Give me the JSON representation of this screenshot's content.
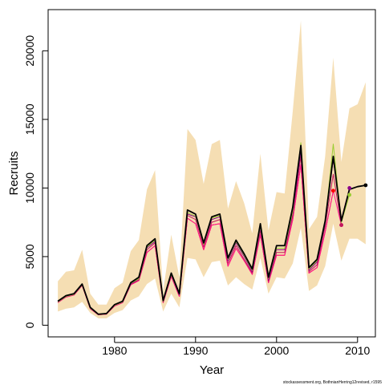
{
  "chart_data": {
    "type": "line",
    "xlabel": "Year",
    "ylabel": "Recruits",
    "footnote": "stockassessment.org, BothnianHerring12revised, r1595",
    "xlim": [
      1971.8,
      2012.2
    ],
    "ylim": [
      -850,
      23000
    ],
    "x_ticks": [
      1980,
      1990,
      2000,
      2010
    ],
    "x_tick_labels": [
      "1980",
      "1990",
      "2000",
      "2010"
    ],
    "y_ticks": [
      0,
      5000,
      10000,
      15000,
      20000
    ],
    "y_tick_labels": [
      "0",
      "5000",
      "10000",
      "15000",
      "20000"
    ],
    "years": [
      1973,
      1974,
      1975,
      1976,
      1977,
      1978,
      1979,
      1980,
      1981,
      1982,
      1983,
      1984,
      1985,
      1986,
      1987,
      1988,
      1989,
      1990,
      1991,
      1992,
      1993,
      1994,
      1995,
      1996,
      1997,
      1998,
      1999,
      2000,
      2001,
      2002,
      2003,
      2004,
      2005,
      2006,
      2007,
      2008,
      2009,
      2010,
      2011
    ],
    "band_color": "#f5deb3",
    "band_lower": [
      1000,
      1200,
      1300,
      1700,
      900,
      500,
      500,
      900,
      1100,
      1800,
      2100,
      3000,
      3400,
      1000,
      2300,
      1300,
      4900,
      4800,
      3500,
      4600,
      4700,
      2900,
      3500,
      3000,
      2600,
      4900,
      2300,
      3500,
      3400,
      4500,
      7100,
      2500,
      2900,
      4300,
      7400,
      4700,
      6300,
      6300,
      5900
    ],
    "band_upper": [
      3200,
      3900,
      4000,
      5500,
      2300,
      1500,
      1500,
      2700,
      3100,
      5400,
      6200,
      9900,
      11300,
      2500,
      6600,
      3500,
      14300,
      13500,
      10300,
      13200,
      13500,
      8500,
      10500,
      8900,
      6700,
      12500,
      6900,
      9700,
      9600,
      15600,
      22200,
      7000,
      7900,
      12300,
      19500,
      11900,
      15800,
      16100,
      17700
    ],
    "series": [
      {
        "color": "#000000",
        "values": [
          1750,
          2150,
          2300,
          3000,
          1300,
          800,
          850,
          1500,
          1750,
          3100,
          3500,
          5800,
          6300,
          1800,
          3800,
          2300,
          8400,
          8100,
          6000,
          7900,
          8100,
          4900,
          6200,
          5200,
          4100,
          7400,
          3500,
          5800,
          5800,
          8600,
          13100,
          4200,
          4800,
          7600,
          12300,
          7600,
          9900,
          10100,
          10200
        ]
      },
      {
        "color": "#9acd32",
        "values": [
          1700,
          2100,
          2250,
          2950,
          1250,
          780,
          830,
          1450,
          1700,
          3050,
          3400,
          5700,
          6200,
          1750,
          3700,
          2250,
          8200,
          7950,
          5900,
          7800,
          8000,
          4800,
          6100,
          5100,
          4000,
          7200,
          3400,
          5600,
          5600,
          8300,
          13300,
          4100,
          4700,
          7500,
          13200,
          7500,
          9500
        ]
      },
      {
        "color": "#8b008b",
        "values": [
          1700,
          2100,
          2250,
          2950,
          1250,
          780,
          830,
          1450,
          1700,
          3000,
          3400,
          5650,
          6100,
          1750,
          3700,
          2200,
          8100,
          7900,
          5900,
          7700,
          7900,
          4700,
          6000,
          5000,
          3900,
          7100,
          3300,
          5500,
          5500,
          8200,
          12700,
          4000,
          4600,
          7400,
          12100,
          7700,
          10000
        ]
      },
      {
        "color": "#c2185b",
        "values": [
          1700,
          2100,
          2250,
          2950,
          1250,
          780,
          830,
          1450,
          1700,
          3000,
          3300,
          5500,
          6000,
          1700,
          3650,
          2200,
          8000,
          7700,
          5700,
          7500,
          7700,
          4500,
          5800,
          4800,
          3800,
          6900,
          3200,
          5300,
          5300,
          8000,
          12300,
          3900,
          4400,
          7200,
          11000,
          7300
        ]
      },
      {
        "color": "#ff1493",
        "values": [
          1650,
          2050,
          2200,
          2900,
          1200,
          760,
          810,
          1400,
          1650,
          2950,
          3250,
          5300,
          5800,
          1650,
          3550,
          2100,
          7800,
          7400,
          5500,
          7300,
          7400,
          4300,
          5600,
          4700,
          3700,
          6600,
          3100,
          5100,
          5100,
          7700,
          11700,
          3800,
          4200,
          6800,
          9800,
          7300
        ]
      },
      {
        "color": "#ff0000",
        "values": [
          1650,
          2050,
          2200,
          2900,
          1200,
          760,
          810,
          1400,
          1650,
          2950,
          3250,
          5300,
          5800,
          1650,
          3550,
          2100,
          7800,
          7400,
          5500,
          7300,
          7400,
          4300,
          5600,
          4700,
          3700,
          6600,
          3100,
          5100,
          5100,
          7700,
          11700,
          3800,
          4200,
          6800,
          9800
        ]
      }
    ]
  }
}
